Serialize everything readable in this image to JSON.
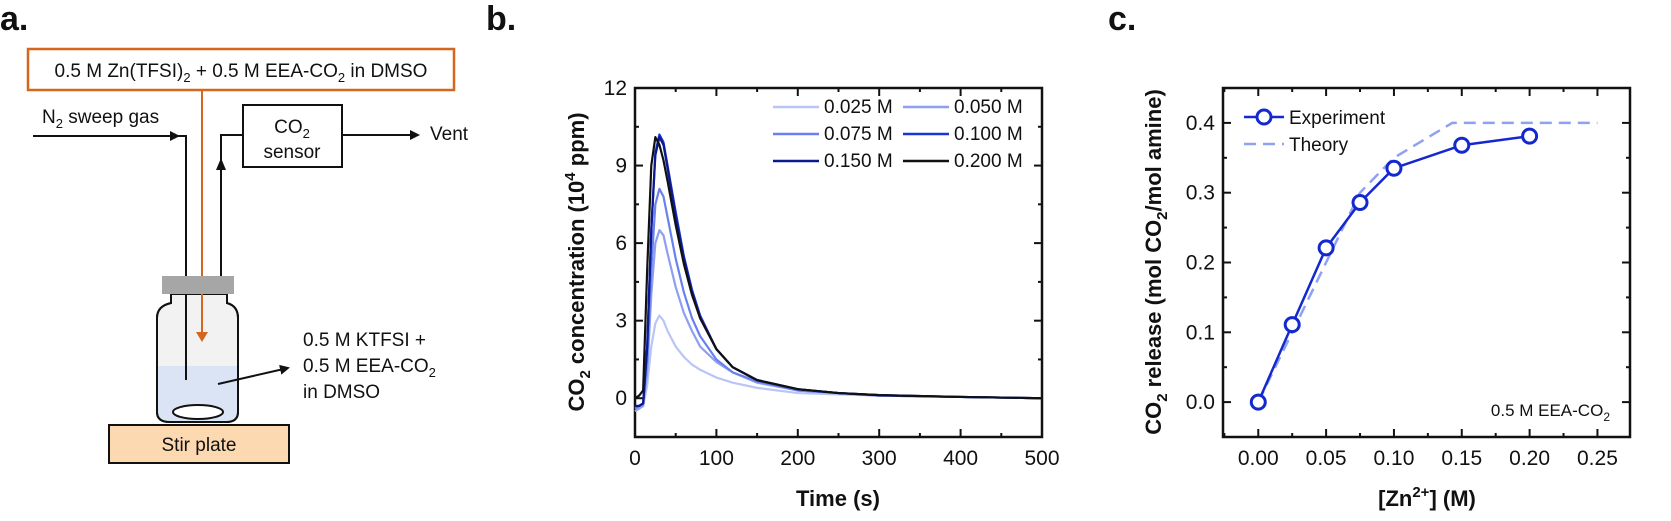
{
  "panel_labels": {
    "a": "a.",
    "b": "b.",
    "c": "c."
  },
  "diagram": {
    "feed_box": {
      "p1": "0.5 M Zn(TFSI)",
      "s1": "2",
      "p2": " + 0.5 M EEA-CO",
      "s2": "2",
      "p3": " in DMSO"
    },
    "sweep_gas": {
      "p1": "N",
      "s1": "2",
      "p2": " sweep gas"
    },
    "sensor": {
      "p1": "CO",
      "s1": "2",
      "line2": "sensor"
    },
    "vent": "Vent",
    "solution": {
      "line1": "0.5 M KTFSI +",
      "line2_p": "0.5 M EEA-CO",
      "line2_s": "2",
      "line3": "in DMSO"
    },
    "stir_plate": "Stir plate",
    "colors": {
      "feed": "#d4661f",
      "cap": "#a6a6a6",
      "liquid": "#dbe4f4",
      "plate": "#fcd9b0"
    }
  },
  "chart_data": [
    {
      "type": "line",
      "title": "",
      "xlabel": "Time (s)",
      "ylabel": {
        "p1": "CO",
        "s1": "2",
        "p2": " concentration (10",
        "sup": "4",
        "p3": " ppm)"
      },
      "xlim": [
        0,
        500
      ],
      "ylim": [
        -1.5,
        12
      ],
      "xticks": [
        0,
        100,
        200,
        300,
        400,
        500
      ],
      "yticks": [
        0,
        3,
        6,
        9,
        12
      ],
      "grid": false,
      "legend_placement": "top-right",
      "x": [
        0,
        5,
        10,
        15,
        20,
        25,
        30,
        35,
        40,
        50,
        60,
        70,
        80,
        100,
        120,
        150,
        200,
        250,
        300,
        400,
        500
      ],
      "series": [
        {
          "name": "0.025 M",
          "color": "#b9c5f6",
          "values": [
            -0.5,
            -0.4,
            -0.3,
            0.5,
            2.0,
            2.9,
            3.2,
            3.0,
            2.6,
            2.0,
            1.6,
            1.3,
            1.1,
            0.8,
            0.6,
            0.4,
            0.2,
            0.15,
            0.1,
            0.05,
            0
          ]
        },
        {
          "name": "0.050 M",
          "color": "#8e9ff1",
          "values": [
            -0.5,
            -0.4,
            -0.3,
            1.0,
            4.0,
            6.0,
            6.5,
            6.3,
            5.6,
            4.3,
            3.3,
            2.6,
            2.0,
            1.4,
            1.0,
            0.6,
            0.3,
            0.2,
            0.1,
            0.05,
            0
          ]
        },
        {
          "name": "0.075 M",
          "color": "#6a80ef",
          "values": [
            -0.4,
            -0.3,
            -0.2,
            1.5,
            5.0,
            7.5,
            8.1,
            7.8,
            7.0,
            5.4,
            4.1,
            3.1,
            2.4,
            1.5,
            1.0,
            0.65,
            0.3,
            0.2,
            0.1,
            0.05,
            0
          ]
        },
        {
          "name": "0.100 M",
          "color": "#1a33d6",
          "values": [
            -0.3,
            -0.3,
            -0.2,
            2.0,
            6.5,
            9.5,
            10.2,
            9.9,
            9.0,
            7.2,
            5.5,
            4.2,
            3.2,
            1.9,
            1.2,
            0.7,
            0.35,
            0.2,
            0.12,
            0.05,
            0
          ]
        },
        {
          "name": "0.150 M",
          "color": "#0b1b8c",
          "values": [
            -0.3,
            -0.3,
            -0.2,
            2.0,
            6.5,
            9.4,
            10.1,
            9.8,
            8.9,
            7.0,
            5.4,
            4.1,
            3.1,
            1.9,
            1.2,
            0.7,
            0.35,
            0.2,
            0.12,
            0.05,
            0
          ]
        },
        {
          "name": "0.200 M",
          "color": "#111111",
          "values": [
            0,
            0.1,
            0.3,
            5.0,
            9.0,
            10.1,
            9.8,
            9.2,
            8.4,
            6.7,
            5.2,
            4.0,
            3.1,
            1.9,
            1.2,
            0.7,
            0.35,
            0.2,
            0.12,
            0.05,
            0
          ]
        }
      ]
    },
    {
      "type": "line",
      "title": "",
      "xlabel": {
        "p1": "[Zn",
        "sup": "2+",
        "p2": "] (M)"
      },
      "ylabel": {
        "p1": "CO",
        "s1": "2",
        "p2": " release (mol CO",
        "s2": "2",
        "p3": "/mol amine)"
      },
      "xlim": [
        -0.026,
        0.274
      ],
      "ylim": [
        -0.05,
        0.45
      ],
      "xticks": [
        "0.00",
        "0.05",
        "0.10",
        "0.15",
        "0.20",
        "0.25"
      ],
      "yticks": [
        "0.0",
        "0.1",
        "0.2",
        "0.3",
        "0.4"
      ],
      "grid": false,
      "legend_placement": "top-left",
      "annotation": {
        "p1": "0.5 M EEA-CO",
        "s1": "2"
      },
      "series": [
        {
          "name": "Experiment",
          "color": "#1428d0",
          "style": "solid-markers",
          "x": [
            0,
            0.025,
            0.05,
            0.075,
            0.1,
            0.15,
            0.2
          ],
          "values": [
            0,
            0.111,
            0.221,
            0.286,
            0.335,
            0.368,
            0.381
          ]
        },
        {
          "name": "Theory",
          "color": "#8fa2f2",
          "style": "dashed",
          "x": [
            0,
            0.025,
            0.05,
            0.075,
            0.1,
            0.143,
            0.25
          ],
          "values": [
            0,
            0.1,
            0.2,
            0.3,
            0.35,
            0.4,
            0.4
          ]
        }
      ]
    }
  ]
}
